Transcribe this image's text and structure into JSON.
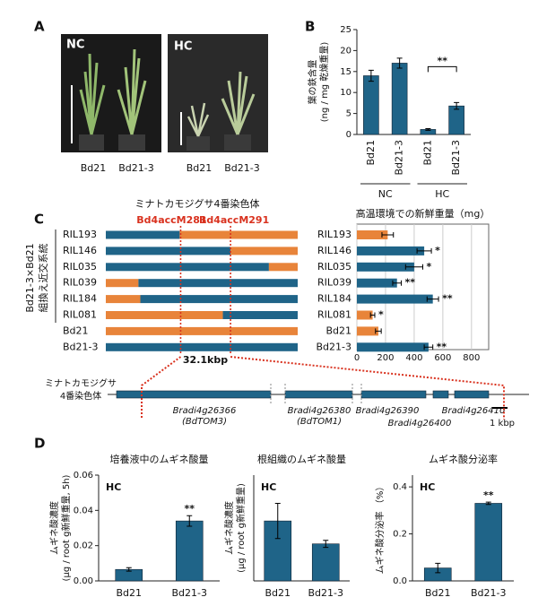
{
  "panel_labels": [
    "A",
    "B",
    "C",
    "D"
  ],
  "panel_a": {
    "photos": [
      {
        "label": "NC",
        "lines": [
          "Bd21",
          "Bd21-3"
        ]
      },
      {
        "label": "HC",
        "lines": [
          "Bd21",
          "Bd21-3"
        ]
      }
    ]
  },
  "panel_c_map": {
    "title": "ミナトカモジグサ4番染色体",
    "group_label": [
      "Bd21-3×Bd21",
      "組換え近交系統"
    ],
    "markers": [
      {
        "name": "Bd4accM281",
        "position": 0.39
      },
      {
        "name": "Bd4accM291",
        "position": 0.65
      }
    ],
    "interval": "32.1kbp",
    "rows": [
      {
        "name": "RIL193",
        "segments": [
          [
            0,
            0.385,
            "#1f6488"
          ],
          [
            0.385,
            1,
            "#e8843a"
          ]
        ]
      },
      {
        "name": "RIL146",
        "segments": [
          [
            0,
            0.65,
            "#1f6488"
          ],
          [
            0.65,
            1,
            "#e8843a"
          ]
        ]
      },
      {
        "name": "RIL035",
        "segments": [
          [
            0,
            0.85,
            "#1f6488"
          ],
          [
            0.85,
            1,
            "#e8843a"
          ]
        ]
      },
      {
        "name": "RIL039",
        "segments": [
          [
            0,
            0.17,
            "#e8843a"
          ],
          [
            0.17,
            1,
            "#1f6488"
          ]
        ]
      },
      {
        "name": "RIL184",
        "segments": [
          [
            0,
            0.18,
            "#e8843a"
          ],
          [
            0.18,
            1,
            "#1f6488"
          ]
        ]
      },
      {
        "name": "RIL081",
        "segments": [
          [
            0,
            0.61,
            "#e8843a"
          ],
          [
            0.61,
            1,
            "#1f6488"
          ]
        ]
      },
      {
        "name": "Bd21",
        "segments": [
          [
            0,
            1,
            "#e8843a"
          ]
        ]
      },
      {
        "name": "Bd21-3",
        "segments": [
          [
            0,
            1,
            "#1f6488"
          ]
        ]
      }
    ]
  },
  "gene_map": {
    "label": [
      "ミナトカモジグサ",
      "4番染色体"
    ],
    "genes": [
      {
        "name": "Bradi4g26366",
        "alias": "(BdTOM3)"
      },
      {
        "name": "Bradi4g26380",
        "alias": "(BdTOM1)"
      },
      {
        "name": "Bradi4g26390"
      },
      {
        "name": "Bradi4g26400"
      },
      {
        "name": "Bradi4g26410"
      }
    ],
    "scale": "1 kbp"
  },
  "chart_data": [
    {
      "type": "bar",
      "ylabel": [
        "葉の鉄含量",
        "(ng / mg 乾燥重量)"
      ],
      "categories": [
        "Bd21",
        "Bd21-3",
        "Bd21",
        "Bd21-3"
      ],
      "groups": [
        "NC",
        "HC"
      ],
      "values": [
        14,
        17,
        1.2,
        6.8
      ],
      "errors": [
        1.3,
        1.2,
        0.2,
        0.8
      ],
      "significance": [
        null,
        null,
        null,
        "**"
      ],
      "color": "#1f6488",
      "ylim": [
        0,
        25
      ],
      "yticks": [
        0,
        5,
        10,
        15,
        20,
        25
      ]
    },
    {
      "type": "barh",
      "title": "高温環境での新鮮重量（mg）",
      "categories": [
        "RIL193",
        "RIL146",
        "RIL035",
        "RIL039",
        "RIL184",
        "RIL081",
        "Bd21",
        "Bd21-3"
      ],
      "values": [
        215,
        470,
        400,
        280,
        530,
        110,
        150,
        500
      ],
      "errors": [
        40,
        50,
        60,
        30,
        40,
        15,
        20,
        30
      ],
      "significance": [
        null,
        "*",
        "*",
        "**",
        "**",
        "*",
        null,
        "**"
      ],
      "colors": [
        "#e8843a",
        "#1f6488",
        "#1f6488",
        "#1f6488",
        "#1f6488",
        "#e8843a",
        "#e8843a",
        "#1f6488"
      ],
      "xlim": [
        0,
        920
      ],
      "xticks": [
        0,
        200,
        400,
        600,
        800
      ],
      "grid": true
    },
    {
      "type": "bar",
      "title": "培養液中のムギネ酸量",
      "ylabel": [
        "ムギネ酸濃度",
        "(μg / root g新鮮重量, 5h)"
      ],
      "annotation": "HC",
      "categories": [
        "Bd21",
        "Bd21-3"
      ],
      "values": [
        0.0065,
        0.034
      ],
      "errors": [
        0.001,
        0.003
      ],
      "significance": [
        null,
        "**"
      ],
      "color": "#1f6488",
      "ylim": [
        0,
        0.06
      ],
      "yticks": [
        {
          "value": 0,
          "label": "0.00"
        },
        {
          "value": 0.02,
          "label": "0.02"
        },
        {
          "value": 0.04,
          "label": "0.04"
        },
        {
          "value": 0.06,
          "label": "0.06"
        }
      ]
    },
    {
      "type": "bar",
      "title": "根組織のムギネ酸量",
      "ylabel": [
        "ムギネ酸濃度",
        "(μg / root g新鮮重量)"
      ],
      "annotation": "HC",
      "categories": [
        "Bd21",
        "Bd21-3"
      ],
      "values": [
        17,
        10.5
      ],
      "errors": [
        5,
        1
      ],
      "significance": [
        null,
        null
      ],
      "color": "#1f6488",
      "ylim": [
        0,
        30
      ],
      "yticks": []
    },
    {
      "type": "bar",
      "title": "ムギネ酸分泌率",
      "ylabel": [
        "ムギネ酸分泌率 （%）"
      ],
      "annotation": "HC",
      "categories": [
        "Bd21",
        "Bd21-3"
      ],
      "values": [
        0.055,
        0.33
      ],
      "errors": [
        0.02,
        0.005
      ],
      "significance": [
        null,
        "**"
      ],
      "color": "#1f6488",
      "ylim": [
        0,
        0.45
      ],
      "yticks": [
        {
          "value": 0,
          "label": "0.0"
        },
        {
          "value": 0.2,
          "label": "0.2"
        },
        {
          "value": 0.4,
          "label": "0.4"
        }
      ]
    }
  ]
}
